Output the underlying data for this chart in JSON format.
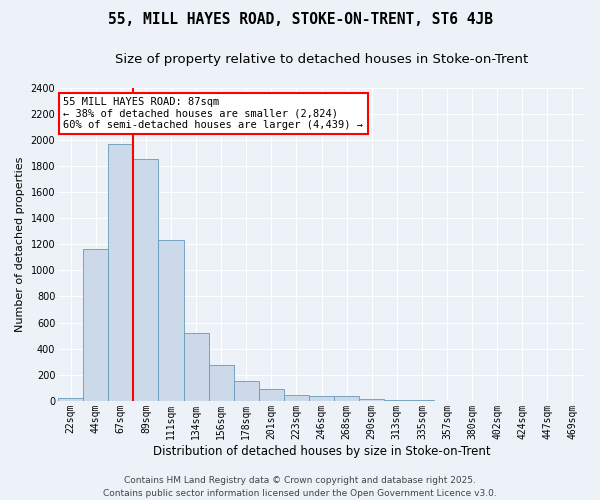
{
  "title": "55, MILL HAYES ROAD, STOKE-ON-TRENT, ST6 4JB",
  "subtitle": "Size of property relative to detached houses in Stoke-on-Trent",
  "xlabel": "Distribution of detached houses by size in Stoke-on-Trent",
  "ylabel": "Number of detached properties",
  "bin_labels": [
    "22sqm",
    "44sqm",
    "67sqm",
    "89sqm",
    "111sqm",
    "134sqm",
    "156sqm",
    "178sqm",
    "201sqm",
    "223sqm",
    "246sqm",
    "268sqm",
    "290sqm",
    "313sqm",
    "335sqm",
    "357sqm",
    "380sqm",
    "402sqm",
    "424sqm",
    "447sqm",
    "469sqm"
  ],
  "bar_heights": [
    25,
    1160,
    1970,
    1855,
    1230,
    520,
    275,
    155,
    95,
    45,
    40,
    35,
    18,
    8,
    5,
    3,
    2,
    2,
    1,
    1,
    1
  ],
  "bar_color": "#ccd9e8",
  "bar_edge_color": "#6699bb",
  "vline_color": "red",
  "annotation_text": "55 MILL HAYES ROAD: 87sqm\n← 38% of detached houses are smaller (2,824)\n60% of semi-detached houses are larger (4,439) →",
  "annotation_box_color": "white",
  "annotation_box_edge_color": "red",
  "ylim": [
    0,
    2400
  ],
  "yticks": [
    0,
    200,
    400,
    600,
    800,
    1000,
    1200,
    1400,
    1600,
    1800,
    2000,
    2200,
    2400
  ],
  "footer_line1": "Contains HM Land Registry data © Crown copyright and database right 2025.",
  "footer_line2": "Contains public sector information licensed under the Open Government Licence v3.0.",
  "bg_color": "#edf2f9",
  "plot_bg_color": "#edf2f9",
  "grid_color": "white",
  "title_fontsize": 10.5,
  "subtitle_fontsize": 9.5,
  "xlabel_fontsize": 8.5,
  "ylabel_fontsize": 8,
  "tick_fontsize": 7,
  "annotation_fontsize": 7.5,
  "footer_fontsize": 6.5
}
